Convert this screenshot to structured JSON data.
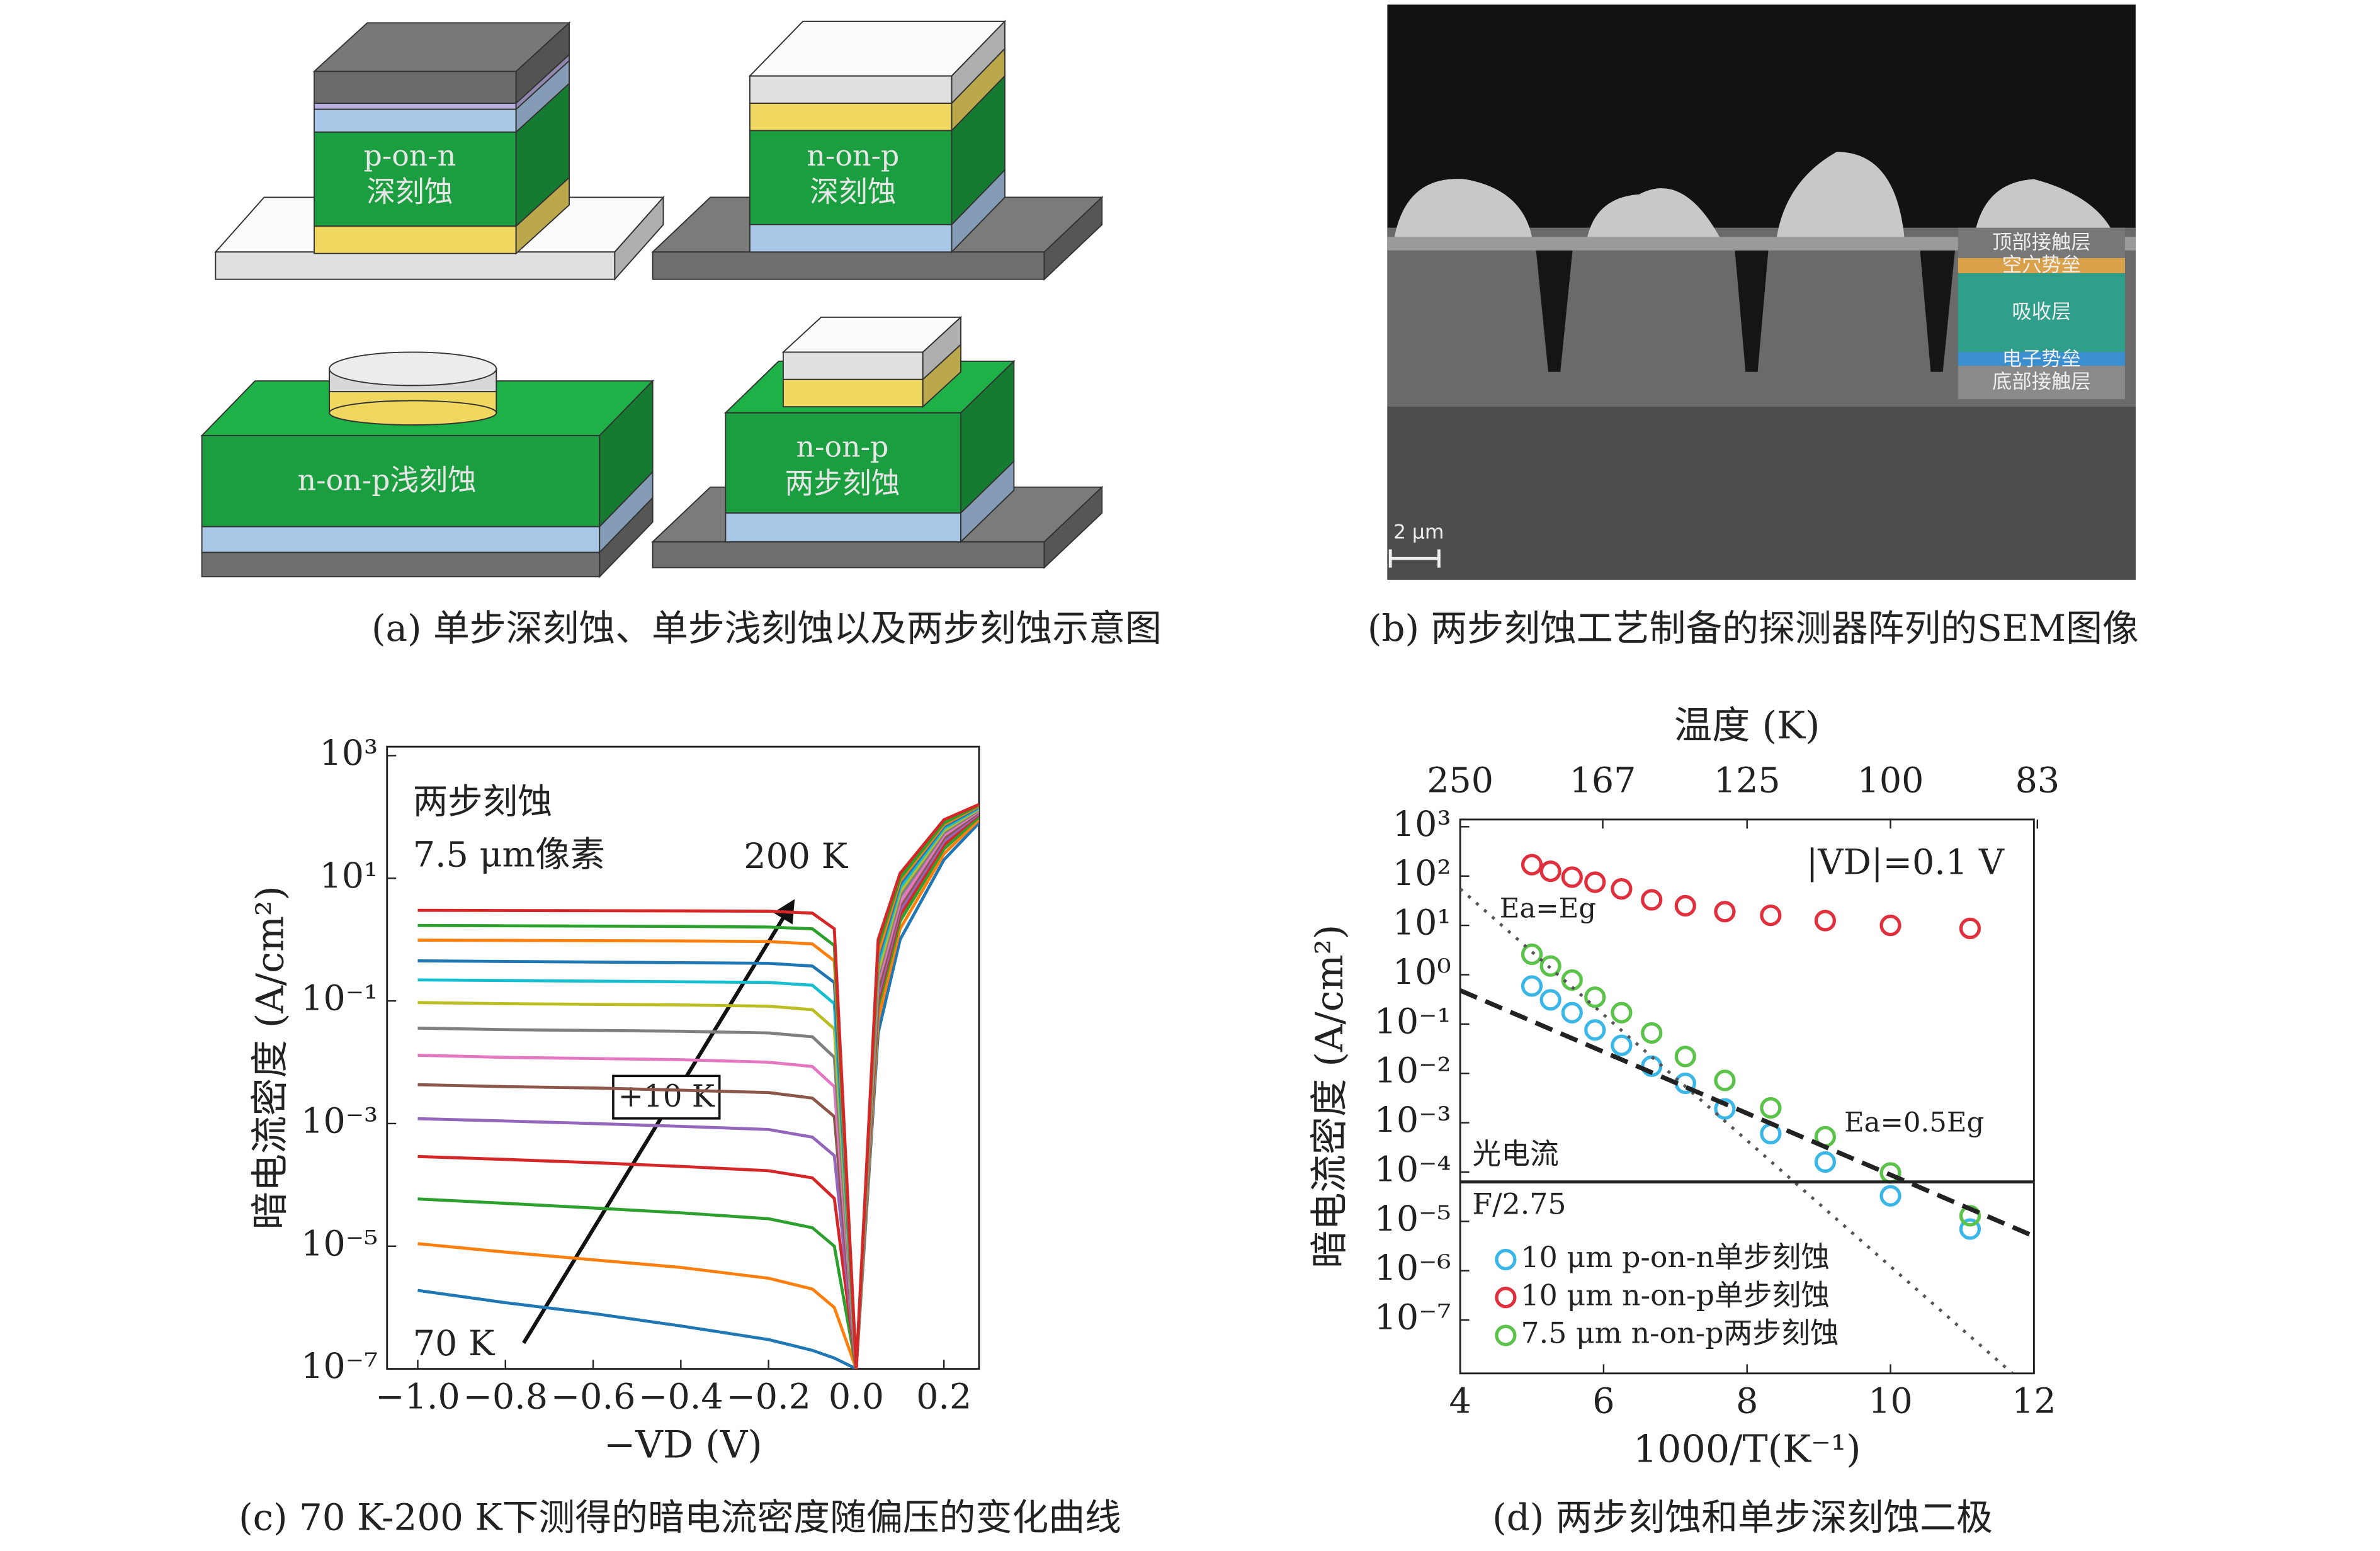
{
  "panel_a": {
    "caption": "(a) 单步深刻蚀、单步浅刻蚀以及两步刻蚀示意图",
    "labels": [
      "p-on-n",
      "深刻蚀",
      "n-on-p",
      "深刻蚀",
      "n-on-p浅刻蚀",
      "n-on-p",
      "两步刻蚀"
    ]
  },
  "panel_b": {
    "caption": "(b) 两步刻蚀工艺制备的探测器阵列的SEM图像",
    "layers": [
      "顶部接触层",
      "空穴势垒",
      "吸收层",
      "电子势垒",
      "底部接触层"
    ],
    "scale_bar": "2 μm"
  },
  "chart_data": [
    {
      "type": "line",
      "caption": "(c) 70 K-200 K下测得的暗电流密度随偏压的变化曲线",
      "xlabel": "−VD (V)",
      "ylabel": "暗电流密度 (A/cm²)",
      "annotations": [
        "两步刻蚀",
        "7.5 μm像素",
        "200 K",
        "70 K",
        "+10 K"
      ],
      "log_y": true,
      "xlim": [
        -1.07,
        0.28
      ],
      "ylim": [
        1e-07,
        1400
      ],
      "xticks": [
        {
          "value": -1.0,
          "label": "−1.0"
        },
        {
          "value": -0.8,
          "label": "−0.8"
        },
        {
          "value": -0.6,
          "label": "−0.6"
        },
        {
          "value": -0.4,
          "label": "−0.4"
        },
        {
          "value": -0.2,
          "label": "−0.2"
        },
        {
          "value": 0.0,
          "label": "0.0"
        },
        0.2
      ],
      "yticks": [
        {
          "value": 1000,
          "label": "10³"
        },
        {
          "value": 10,
          "label": "10¹"
        },
        {
          "value": 0.1,
          "label": "10⁻¹"
        },
        {
          "value": 0.001,
          "label": "10⁻³"
        },
        {
          "value": 1e-05,
          "label": "10⁻⁵"
        },
        {
          "value": 1e-07,
          "label": "10⁻⁷"
        }
      ],
      "x": [
        -1.0,
        -0.8,
        -0.6,
        -0.4,
        -0.2,
        -0.1,
        -0.05,
        0.0,
        0.05,
        0.1,
        0.2,
        0.28
      ],
      "series": [
        {
          "color": "#1f77b4",
          "values": [
            1.9e-06,
            1.2e-06,
            8e-07,
            5e-07,
            3e-07,
            2e-07,
            1.5e-07,
            1e-07,
            0.03,
            1,
            20,
            80
          ]
        },
        {
          "color": "#ff7f0e",
          "values": [
            1.1e-05,
            8e-06,
            6e-06,
            4.5e-06,
            3e-06,
            2e-06,
            1e-06,
            1e-07,
            0.05,
            1.5,
            25,
            90
          ]
        },
        {
          "color": "#2ca02c",
          "values": [
            5.9e-05,
            5e-05,
            4.2e-05,
            3.5e-05,
            2.8e-05,
            2e-05,
            1e-05,
            1e-07,
            0.08,
            2,
            30,
            100
          ]
        },
        {
          "color": "#d62728",
          "values": [
            0.00029,
            0.00026,
            0.00023,
            0.0002,
            0.00017,
            0.00013,
            6e-05,
            1e-07,
            0.1,
            2.5,
            35,
            110
          ]
        },
        {
          "color": "#9467bd",
          "values": [
            0.0012,
            0.0011,
            0.001,
            0.0009,
            0.0008,
            0.0006,
            0.0003,
            1e-07,
            0.12,
            3,
            40,
            115
          ]
        },
        {
          "color": "#8c564b",
          "values": [
            0.0043,
            0.004,
            0.0038,
            0.0035,
            0.0032,
            0.0026,
            0.0013,
            1e-07,
            0.15,
            3.5,
            45,
            120
          ]
        },
        {
          "color": "#e377c2",
          "values": [
            0.013,
            0.012,
            0.0115,
            0.011,
            0.01,
            0.0085,
            0.004,
            1e-07,
            0.2,
            4,
            50,
            125
          ]
        },
        {
          "color": "#7f7f7f",
          "values": [
            0.036,
            0.034,
            0.033,
            0.032,
            0.03,
            0.026,
            0.012,
            1e-07,
            0.25,
            5,
            55,
            130
          ]
        },
        {
          "color": "#bcbd22",
          "values": [
            0.094,
            0.09,
            0.088,
            0.086,
            0.082,
            0.072,
            0.035,
            1e-07,
            0.3,
            6,
            60,
            135
          ]
        },
        {
          "color": "#17becf",
          "values": [
            0.22,
            0.215,
            0.21,
            0.205,
            0.2,
            0.18,
            0.09,
            1e-07,
            0.4,
            7,
            65,
            140
          ]
        },
        {
          "color": "#1f77b4",
          "values": [
            0.45,
            0.44,
            0.43,
            0.42,
            0.41,
            0.37,
            0.2,
            1e-07,
            0.5,
            8,
            70,
            145
          ]
        },
        {
          "color": "#ff7f0e",
          "values": [
            0.98,
            0.97,
            0.96,
            0.95,
            0.93,
            0.85,
            0.45,
            1e-07,
            0.6,
            9,
            75,
            150
          ]
        },
        {
          "color": "#2ca02c",
          "values": [
            1.7,
            1.68,
            1.66,
            1.64,
            1.6,
            1.5,
            0.8,
            1e-07,
            0.8,
            10,
            80,
            155
          ]
        },
        {
          "color": "#d62728",
          "values": [
            3,
            2.98,
            2.96,
            2.94,
            2.9,
            2.7,
            1.5,
            1e-07,
            1,
            12,
            90,
            160
          ]
        }
      ]
    },
    {
      "type": "scatter",
      "caption": "(d) 两步刻蚀和单步深刻蚀二极",
      "xlabel": "1000/T(K⁻¹)",
      "ylabel": "暗电流密度 (A/cm²)",
      "x2label": "温度 (K)",
      "annotations": [
        "|VD|=0.1 V",
        "Ea=Eg",
        "Ea=0.5Eg",
        "光电流",
        "F/2.75"
      ],
      "log_y": true,
      "legend": "lower left",
      "xlim": [
        4,
        12
      ],
      "ylim": [
        8.3e-09,
        1400
      ],
      "xticks": [
        4,
        6,
        8,
        10,
        12
      ],
      "x2ticks": [
        250,
        167,
        125,
        100,
        83
      ],
      "yticks": [
        {
          "value": 1000,
          "label": "10³"
        },
        {
          "value": 100,
          "label": "10²"
        },
        {
          "value": 10,
          "label": "10¹"
        },
        {
          "value": 1,
          "label": "10⁰"
        },
        {
          "value": 0.1,
          "label": "10⁻¹"
        },
        {
          "value": 0.01,
          "label": "10⁻²"
        },
        {
          "value": 0.001,
          "label": "10⁻³"
        },
        {
          "value": 0.0001,
          "label": "10⁻⁴"
        },
        {
          "value": 1e-05,
          "label": "10⁻⁵"
        },
        {
          "value": 1e-06,
          "label": "10⁻⁶"
        },
        {
          "value": 1e-07,
          "label": "10⁻⁷"
        }
      ],
      "series": [
        {
          "name": "10 μm p-on-n单步刻蚀",
          "color": "#3ab7e6",
          "marker": "circle",
          "x": [
            5,
            5.26,
            5.56,
            5.88,
            6.25,
            6.67,
            7.14,
            7.69,
            8.33,
            9.09,
            10,
            11.11
          ],
          "values": [
            0.59,
            0.31,
            0.17,
            0.076,
            0.037,
            0.014,
            0.0063,
            0.0019,
            0.0006,
            0.00016,
            3.3e-05,
            7e-06
          ]
        },
        {
          "name": "10 μm n-on-p单步刻蚀",
          "color": "#e0303d",
          "marker": "circle",
          "x": [
            5,
            5.26,
            5.56,
            5.88,
            6.25,
            6.67,
            7.14,
            7.69,
            8.33,
            9.09,
            10,
            11.11
          ],
          "values": [
            170,
            125,
            95,
            75,
            55,
            33,
            25,
            19,
            16,
            12.5,
            10,
            8.7
          ]
        },
        {
          "name": "7.5 μm n-on-p两步刻蚀",
          "color": "#5cc34a",
          "marker": "circle",
          "x": [
            5,
            5.26,
            5.56,
            5.88,
            6.25,
            6.67,
            7.14,
            7.69,
            8.33,
            9.09,
            10,
            11.11
          ],
          "values": [
            2.6,
            1.5,
            0.78,
            0.35,
            0.17,
            0.066,
            0.022,
            0.0072,
            0.002,
            0.00052,
            9.6e-05,
            1.3e-05
          ]
        },
        {
          "color": "#555555",
          "style": "dotted",
          "x": [
            4,
            11.7
          ],
          "values": [
            55,
            8.3e-09
          ]
        },
        {
          "color": "#222222",
          "style": "dashed",
          "x": [
            4,
            12
          ],
          "values": [
            0.48,
            5e-06
          ]
        },
        {
          "color": "#222222",
          "style": "solid",
          "x": [
            4,
            12
          ],
          "values": [
            6.3e-05,
            6.3e-05
          ]
        }
      ]
    }
  ]
}
